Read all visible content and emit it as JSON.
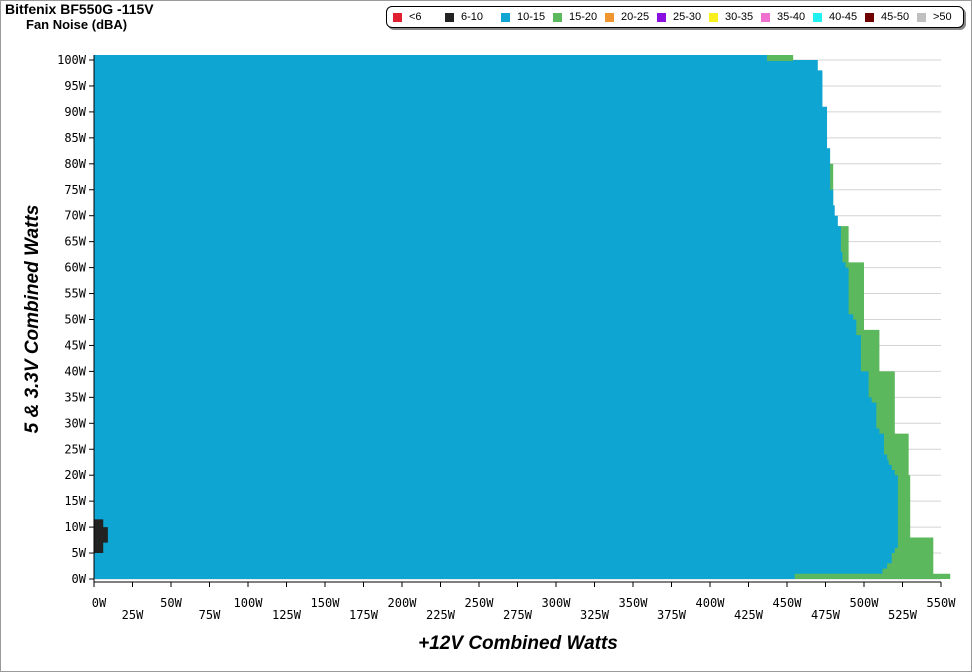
{
  "chart_data": {
    "type": "heatmap",
    "title": "Bitfenix BF550G -115V",
    "subtitle": "Fan Noise (dBA)",
    "xlabel": "+12V Combined Watts",
    "ylabel": "5 & 3.3V Combined Watts",
    "xlim": [
      0,
      550
    ],
    "ylim": [
      0,
      100
    ],
    "x_ticks": [
      "0W",
      "25W",
      "50W",
      "75W",
      "100W",
      "125W",
      "150W",
      "175W",
      "200W",
      "225W",
      "250W",
      "275W",
      "300W",
      "325W",
      "350W",
      "375W",
      "400W",
      "425W",
      "450W",
      "475W",
      "500W",
      "525W",
      "550W"
    ],
    "y_ticks": [
      "0W",
      "5W",
      "10W",
      "15W",
      "20W",
      "25W",
      "30W",
      "35W",
      "40W",
      "45W",
      "50W",
      "55W",
      "60W",
      "65W",
      "70W",
      "75W",
      "80W",
      "85W",
      "90W",
      "95W",
      "100W"
    ],
    "grid": true,
    "legend_position": "top-right",
    "legend": [
      {
        "label": "<6",
        "color": "#e02030"
      },
      {
        "label": "6-10",
        "color": "#222222"
      },
      {
        "label": "10-15",
        "color": "#0ea5d2"
      },
      {
        "label": "15-20",
        "color": "#5cb85c"
      },
      {
        "label": "20-25",
        "color": "#f0962e"
      },
      {
        "label": "25-30",
        "color": "#8a10e0"
      },
      {
        "label": "30-35",
        "color": "#f8f01c"
      },
      {
        "label": "35-40",
        "color": "#f070d0"
      },
      {
        "label": "40-45",
        "color": "#20f0f0"
      },
      {
        "label": "45-50",
        "color": "#700000"
      },
      {
        ">50": null,
        "label": ">50",
        "color": "#c0c0c0"
      }
    ],
    "boundaries": {
      "blue_right_edge": [
        [
          0,
          455
        ],
        [
          1,
          455
        ],
        [
          1,
          512
        ],
        [
          2,
          512
        ],
        [
          2,
          515
        ],
        [
          3,
          515
        ],
        [
          3,
          518
        ],
        [
          5,
          518
        ],
        [
          5,
          520
        ],
        [
          6,
          520
        ],
        [
          6,
          522
        ],
        [
          20,
          522
        ],
        [
          20,
          520
        ],
        [
          21,
          520
        ],
        [
          21,
          518
        ],
        [
          22,
          518
        ],
        [
          22,
          516
        ],
        [
          23,
          516
        ],
        [
          23,
          515
        ],
        [
          24,
          515
        ],
        [
          24,
          513
        ],
        [
          28,
          513
        ],
        [
          28,
          510
        ],
        [
          29,
          510
        ],
        [
          29,
          508
        ],
        [
          34,
          508
        ],
        [
          34,
          505
        ],
        [
          35,
          505
        ],
        [
          35,
          503
        ],
        [
          40,
          503
        ],
        [
          40,
          498
        ],
        [
          47,
          498
        ],
        [
          47,
          495
        ],
        [
          50,
          495
        ],
        [
          50,
          493
        ],
        [
          51,
          493
        ],
        [
          51,
          490
        ],
        [
          60,
          490
        ],
        [
          60,
          488
        ],
        [
          61,
          488
        ],
        [
          61,
          486
        ],
        [
          63,
          486
        ],
        [
          63,
          485
        ],
        [
          68,
          485
        ],
        [
          68,
          483
        ],
        [
          70,
          483
        ],
        [
          70,
          481
        ],
        [
          72,
          481
        ],
        [
          72,
          480
        ],
        [
          75,
          480
        ],
        [
          75,
          478
        ],
        [
          83,
          478
        ],
        [
          83,
          476
        ],
        [
          91,
          476
        ],
        [
          91,
          473
        ],
        [
          98,
          473
        ],
        [
          98,
          470
        ],
        [
          100,
          470
        ]
      ],
      "green_right_edge": [
        [
          0,
          556
        ],
        [
          1,
          556
        ],
        [
          1,
          545
        ],
        [
          8,
          545
        ],
        [
          8,
          530
        ],
        [
          20,
          530
        ],
        [
          20,
          529
        ],
        [
          28,
          529
        ],
        [
          28,
          520
        ],
        [
          40,
          520
        ],
        [
          40,
          510
        ],
        [
          48,
          510
        ],
        [
          48,
          500
        ],
        [
          61,
          500
        ],
        [
          61,
          490
        ],
        [
          68,
          490
        ],
        [
          68,
          480
        ],
        [
          80,
          480
        ],
        [
          80,
          470
        ],
        [
          91,
          470
        ],
        [
          91,
          462
        ],
        [
          100,
          462
        ]
      ],
      "dark_region": {
        "x": [
          0,
          6
        ],
        "y": [
          5,
          11
        ]
      }
    }
  }
}
